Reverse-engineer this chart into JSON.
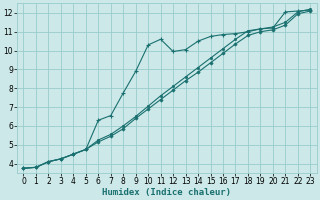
{
  "xlabel": "Humidex (Indice chaleur)",
  "bg_color": "#cce8e8",
  "grid_color": "#99cccc",
  "line_color": "#1a7070",
  "xlim": [
    -0.5,
    23.5
  ],
  "ylim": [
    3.5,
    12.5
  ],
  "xticks": [
    0,
    1,
    2,
    3,
    4,
    5,
    6,
    7,
    8,
    9,
    10,
    11,
    12,
    13,
    14,
    15,
    16,
    17,
    18,
    19,
    20,
    21,
    22,
    23
  ],
  "yticks": [
    4,
    5,
    6,
    7,
    8,
    9,
    10,
    11,
    12
  ],
  "line1_x": [
    0,
    1,
    2,
    3,
    4,
    5,
    6,
    7,
    8,
    9,
    10,
    11,
    12,
    13,
    14,
    15,
    16,
    17,
    18,
    19,
    20,
    21,
    22,
    23
  ],
  "line1_y": [
    3.75,
    3.8,
    4.1,
    4.25,
    4.5,
    4.75,
    6.3,
    6.55,
    7.75,
    8.9,
    10.3,
    10.6,
    9.95,
    10.05,
    10.5,
    10.75,
    10.85,
    10.9,
    11.0,
    11.15,
    11.2,
    12.05,
    12.1,
    12.15
  ],
  "line2_x": [
    0,
    1,
    2,
    3,
    4,
    5,
    6,
    7,
    8,
    9,
    10,
    11,
    12,
    13,
    14,
    15,
    16,
    17,
    18,
    19,
    20,
    21,
    22,
    23
  ],
  "line2_y": [
    3.75,
    3.8,
    4.1,
    4.25,
    4.5,
    4.75,
    5.15,
    5.45,
    5.85,
    6.4,
    6.9,
    7.4,
    7.9,
    8.4,
    8.85,
    9.35,
    9.85,
    10.35,
    10.8,
    11.0,
    11.1,
    11.35,
    11.95,
    12.1
  ],
  "line3_x": [
    0,
    1,
    2,
    3,
    4,
    5,
    6,
    7,
    8,
    9,
    10,
    11,
    12,
    13,
    14,
    15,
    16,
    17,
    18,
    19,
    20,
    21,
    22,
    23
  ],
  "line3_y": [
    3.75,
    3.8,
    4.1,
    4.25,
    4.5,
    4.75,
    5.25,
    5.55,
    6.0,
    6.5,
    7.05,
    7.6,
    8.1,
    8.6,
    9.1,
    9.6,
    10.1,
    10.6,
    11.05,
    11.15,
    11.25,
    11.5,
    12.05,
    12.2
  ]
}
